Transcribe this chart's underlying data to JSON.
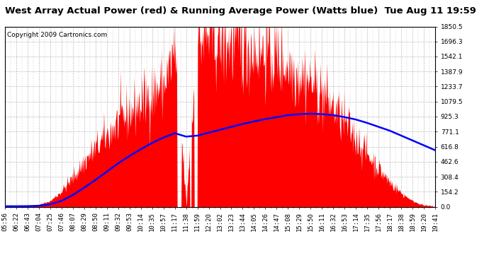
{
  "title": "West Array Actual Power (red) & Running Average Power (Watts blue)  Tue Aug 11 19:59",
  "copyright": "Copyright 2009 Cartronics.com",
  "ymin": 0.0,
  "ymax": 1850.5,
  "yticks": [
    0.0,
    154.2,
    308.4,
    462.6,
    616.8,
    771.1,
    925.3,
    1079.5,
    1233.7,
    1387.9,
    1542.1,
    1696.3,
    1850.5
  ],
  "xtick_labels": [
    "05:56",
    "06:22",
    "06:43",
    "07:04",
    "07:25",
    "07:46",
    "08:07",
    "08:29",
    "08:50",
    "09:11",
    "09:32",
    "09:53",
    "10:14",
    "10:35",
    "10:57",
    "11:17",
    "11:38",
    "11:59",
    "12:20",
    "13:02",
    "13:23",
    "13:44",
    "14:05",
    "14:26",
    "14:47",
    "15:08",
    "15:29",
    "15:50",
    "16:11",
    "16:32",
    "16:53",
    "17:14",
    "17:35",
    "17:56",
    "18:17",
    "18:38",
    "18:59",
    "19:20",
    "19:41"
  ],
  "bg_color": "#ffffff",
  "plot_bg_color": "#ffffff",
  "grid_color": "#bbbbbb",
  "red_color": "#ff0000",
  "blue_color": "#0000ff",
  "actual_power": [
    5,
    5,
    8,
    20,
    60,
    160,
    300,
    460,
    600,
    730,
    870,
    970,
    1060,
    1170,
    1250,
    1600,
    50,
    1700,
    1750,
    1700,
    1680,
    1650,
    1620,
    1580,
    1520,
    1450,
    1370,
    1280,
    1160,
    1020,
    860,
    700,
    540,
    390,
    250,
    140,
    60,
    15,
    3
  ],
  "running_avg": [
    5,
    5,
    6,
    10,
    25,
    60,
    120,
    195,
    275,
    360,
    445,
    520,
    590,
    655,
    710,
    755,
    720,
    730,
    760,
    790,
    820,
    850,
    875,
    900,
    920,
    940,
    950,
    955,
    950,
    940,
    920,
    895,
    860,
    820,
    780,
    730,
    680,
    630,
    580
  ],
  "title_fontsize": 9.5,
  "tick_fontsize": 6.5,
  "copyright_fontsize": 6.5
}
